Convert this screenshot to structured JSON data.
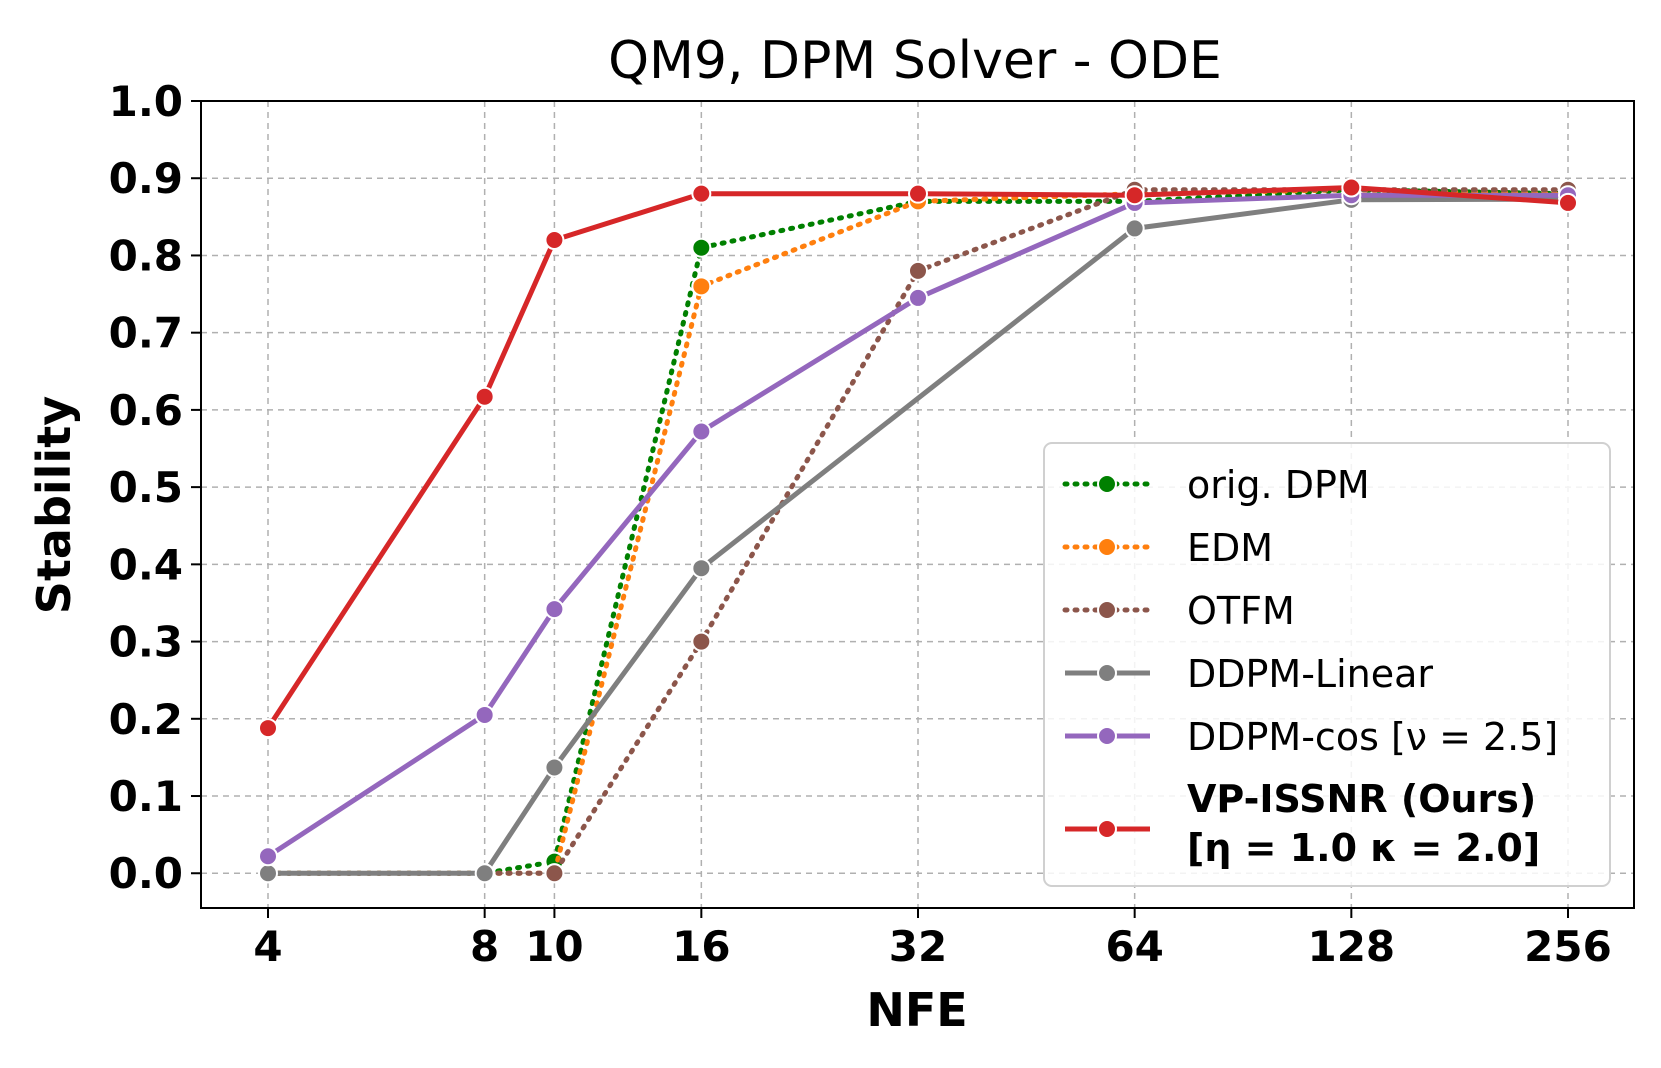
{
  "chart_data": {
    "type": "line",
    "title": "QM9, DPM Solver - ODE",
    "xlabel": "NFE",
    "ylabel": "Stability",
    "xscale": "log2",
    "x": [
      4,
      8,
      10,
      16,
      32,
      64,
      128,
      256
    ],
    "xticks": [
      "4",
      "8",
      "10",
      "16",
      "32",
      "64",
      "128",
      "256"
    ],
    "yticks": [
      "0.0",
      "0.1",
      "0.2",
      "0.3",
      "0.4",
      "0.5",
      "0.6",
      "0.7",
      "0.8",
      "0.9",
      "1.0"
    ],
    "ylim": [
      -0.045,
      1.0
    ],
    "grid": true,
    "legend_position": "lower-right",
    "series": [
      {
        "name": "orig. DPM",
        "color": "#008000",
        "style": "dotted",
        "x": [
          4,
          8,
          10,
          16,
          32,
          64,
          128,
          256
        ],
        "values": [
          0.0,
          0.0,
          0.015,
          0.81,
          0.87,
          0.87,
          0.885,
          0.88
        ]
      },
      {
        "name": "EDM",
        "color": "#ff7f0e",
        "style": "dotted",
        "x": [
          4,
          8,
          10,
          16,
          32,
          64,
          128,
          256
        ],
        "values": [
          0.0,
          0.0,
          0.0,
          0.76,
          0.87,
          0.88,
          0.885,
          0.88
        ]
      },
      {
        "name": "OTFM",
        "color": "#8c564b",
        "style": "dotted",
        "x": [
          4,
          8,
          10,
          16,
          32,
          64,
          128,
          256
        ],
        "values": [
          0.0,
          0.0,
          0.0,
          0.3,
          0.78,
          0.885,
          0.885,
          0.885
        ]
      },
      {
        "name": "DDPM-Linear",
        "color": "#7f7f7f",
        "style": "solid",
        "x": [
          4,
          8,
          10,
          16,
          64,
          128,
          256
        ],
        "values": [
          0.0,
          0.0,
          0.137,
          0.395,
          0.835,
          0.872,
          0.873
        ]
      },
      {
        "name": "DDPM-cos [ν = 2.5]",
        "color": "#9467bd",
        "style": "solid",
        "x": [
          4,
          8,
          10,
          16,
          32,
          64,
          128,
          256
        ],
        "values": [
          0.022,
          0.205,
          0.342,
          0.572,
          0.745,
          0.868,
          0.878,
          0.878
        ]
      },
      {
        "name": "VP-ISSNR (Ours)",
        "name_line2": "[η = 1.0 κ = 2.0]",
        "color": "#d62728",
        "style": "solid",
        "bold": true,
        "x": [
          4,
          8,
          10,
          16,
          32,
          64,
          128,
          256
        ],
        "values": [
          0.188,
          0.617,
          0.82,
          0.88,
          0.88,
          0.878,
          0.888,
          0.868
        ]
      }
    ]
  }
}
